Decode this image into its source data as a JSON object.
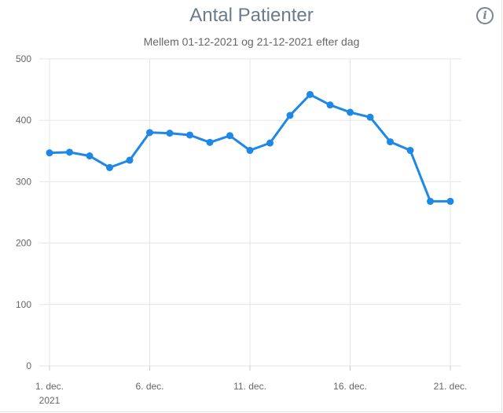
{
  "header": {
    "title": "Antal Patienter",
    "subtitle": "Mellem 01-12-2021 og 21-12-2021 efter dag",
    "info_icon": "info-icon"
  },
  "colors": {
    "line": "#1f87e5",
    "grid": "#e6e6e6",
    "text": "#666666"
  },
  "chart_data": {
    "type": "line",
    "title": "Antal Patienter",
    "subtitle": "Mellem 01-12-2021 og 21-12-2021 efter dag",
    "x": [
      "2021-12-01",
      "2021-12-02",
      "2021-12-03",
      "2021-12-04",
      "2021-12-05",
      "2021-12-06",
      "2021-12-07",
      "2021-12-08",
      "2021-12-09",
      "2021-12-10",
      "2021-12-11",
      "2021-12-12",
      "2021-12-13",
      "2021-12-14",
      "2021-12-15",
      "2021-12-16",
      "2021-12-17",
      "2021-12-18",
      "2021-12-19",
      "2021-12-20",
      "2021-12-21"
    ],
    "series": [
      {
        "values": [
          347,
          348,
          342,
          323,
          335,
          380,
          379,
          376,
          364,
          375,
          351,
          363,
          408,
          442,
          425,
          413,
          405,
          365,
          351,
          268,
          268
        ]
      }
    ],
    "ylim": [
      0,
      500
    ],
    "y_ticks": [
      "0",
      "100",
      "200",
      "300",
      "400",
      "500"
    ],
    "x_ticks": [
      {
        "day": 1,
        "label": "1. dec.",
        "sublabel": "2021"
      },
      {
        "day": 6,
        "label": "6. dec."
      },
      {
        "day": 11,
        "label": "11. dec."
      },
      {
        "day": 16,
        "label": "16. dec."
      },
      {
        "day": 21,
        "label": "21. dec."
      }
    ],
    "xlabel": "",
    "ylabel": "",
    "grid": true,
    "legend": "none"
  }
}
